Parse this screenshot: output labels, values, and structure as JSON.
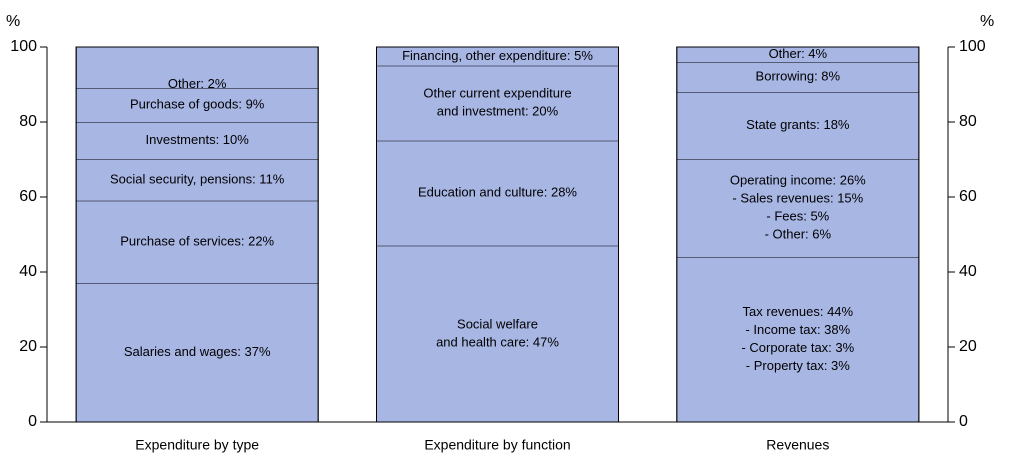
{
  "chart_data": {
    "type": "stacked_bar",
    "y_unit_left": "%",
    "y_unit_right": "%",
    "ylim": [
      0,
      100
    ],
    "yticks": [
      0,
      20,
      40,
      60,
      80,
      100
    ],
    "color": "#a8b6e4",
    "bars": [
      {
        "category": "Expenditure by type",
        "segments": [
          {
            "value": 37,
            "label": [
              "Salaries and wages: 37%"
            ]
          },
          {
            "value": 22,
            "label": [
              "Purchase of services: 22%"
            ]
          },
          {
            "value": 11,
            "label": [
              "Social security, pensions: 11%"
            ]
          },
          {
            "value": 10,
            "label": [
              "Investments: 10%"
            ]
          },
          {
            "value": 9,
            "label": [
              "Purchase of goods: 9%"
            ]
          },
          {
            "value": 2,
            "label": [
              "Other: 2%"
            ]
          }
        ]
      },
      {
        "category": "Expenditure by function",
        "segments": [
          {
            "value": 47,
            "label": [
              "Social welfare",
              "and health care: 47%"
            ]
          },
          {
            "value": 28,
            "label": [
              "Education and culture: 28%"
            ]
          },
          {
            "value": 20,
            "label": [
              "Other current expenditure",
              "and investment: 20%"
            ]
          },
          {
            "value": 5,
            "label": [
              "Financing, other expenditure: 5%"
            ]
          }
        ]
      },
      {
        "category": "Revenues",
        "segments": [
          {
            "value": 44,
            "label": [
              "Tax revenues: 44%",
              "- Income tax: 38%",
              "- Corporate tax: 3%",
              "- Property tax: 3%"
            ]
          },
          {
            "value": 26,
            "label": [
              "Operating income: 26%",
              "- Sales revenues: 15%",
              "- Fees: 5%",
              "- Other: 6%"
            ]
          },
          {
            "value": 18,
            "label": [
              "State grants: 18%"
            ]
          },
          {
            "value": 8,
            "label": [
              "Borrowing: 8%"
            ]
          },
          {
            "value": 4,
            "label": [
              "Other: 4%"
            ]
          }
        ]
      }
    ]
  }
}
